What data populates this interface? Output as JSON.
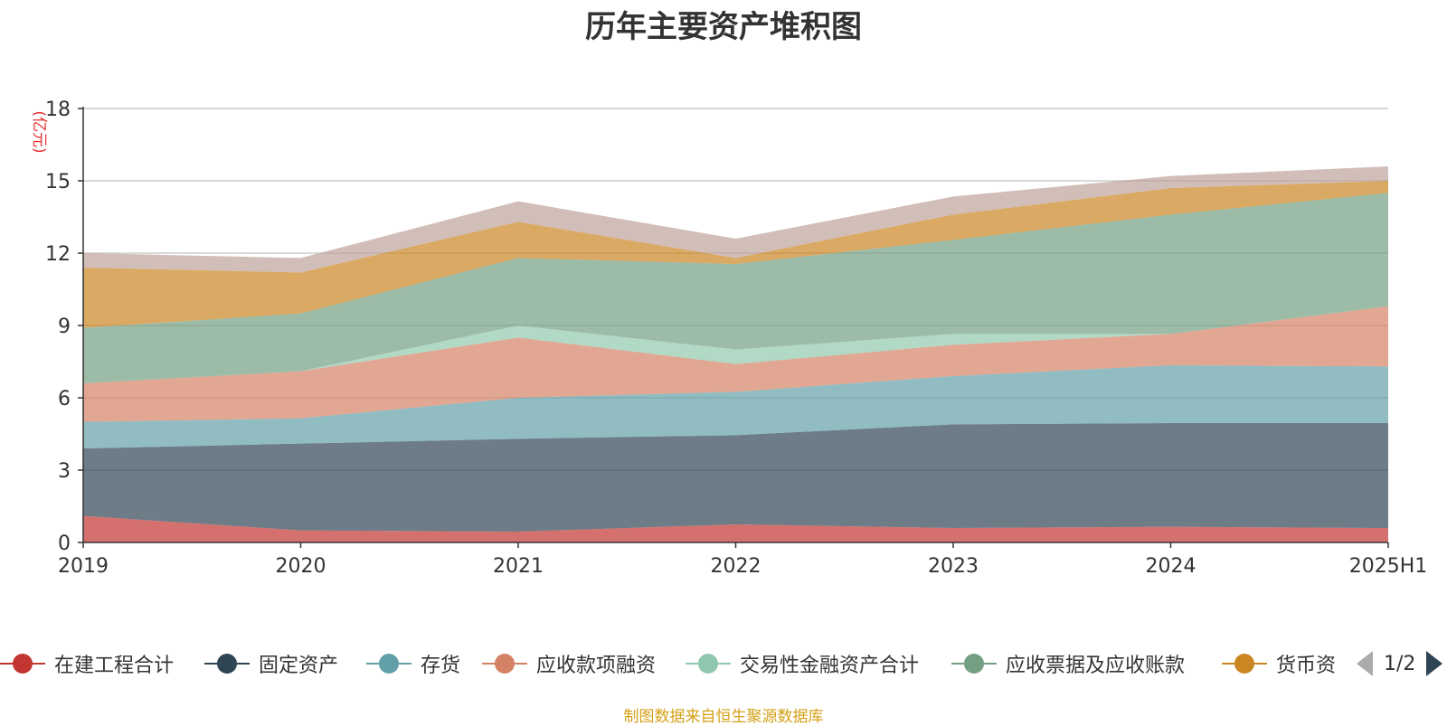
{
  "chart_data": {
    "type": "area",
    "stacked": true,
    "title": "历年主要资产堆积图",
    "ylabel": "(亿元)",
    "xlabel": "",
    "categories": [
      "2019",
      "2020",
      "2021",
      "2022",
      "2023",
      "2024",
      "2025H1"
    ],
    "ylim": [
      0,
      18
    ],
    "yticks": [
      0,
      3,
      6,
      9,
      12,
      15,
      18
    ],
    "grid": true,
    "legend_position": "bottom",
    "series": [
      {
        "name": "在建工程合计",
        "color": "#c23531",
        "values": [
          1.1,
          0.5,
          0.45,
          0.75,
          0.6,
          0.65,
          0.6
        ]
      },
      {
        "name": "固定资产",
        "color": "#2f4554",
        "values": [
          2.8,
          3.6,
          3.85,
          3.7,
          4.3,
          4.3,
          4.35
        ]
      },
      {
        "name": "存货",
        "color": "#61a0a8",
        "values": [
          1.1,
          1.05,
          1.7,
          1.8,
          2.0,
          2.4,
          2.35
        ]
      },
      {
        "name": "应收款项融资",
        "color": "#d48265",
        "values": [
          1.6,
          1.95,
          2.5,
          1.15,
          1.3,
          1.3,
          2.5
        ]
      },
      {
        "name": "交易性金融资产合计",
        "color": "#91c7ae",
        "values": [
          0.0,
          0.0,
          0.5,
          0.6,
          0.45,
          0.0,
          0.0
        ]
      },
      {
        "name": "应收票据及应收账款",
        "color": "#749f83",
        "values": [
          2.3,
          2.4,
          2.8,
          3.55,
          3.9,
          4.95,
          4.7
        ]
      },
      {
        "name": "货币资金",
        "color": "#ca8622",
        "values": [
          2.5,
          1.7,
          1.5,
          0.25,
          1.05,
          1.1,
          0.5
        ]
      },
      {
        "name": "",
        "color": "#bda29a",
        "values": [
          0.6,
          0.6,
          0.85,
          0.8,
          0.75,
          0.5,
          0.6
        ]
      }
    ]
  },
  "legend": {
    "items": [
      {
        "label": "在建工程合计",
        "color": "#c23531"
      },
      {
        "label": "固定资产",
        "color": "#2f4554"
      },
      {
        "label": "存货",
        "color": "#61a0a8"
      },
      {
        "label": "应收款项融资",
        "color": "#d48265"
      },
      {
        "label": "交易性金融资产合计",
        "color": "#91c7ae"
      },
      {
        "label": "应收票据及应收账款",
        "color": "#749f83"
      },
      {
        "label": "货币资",
        "color": "#ca8622"
      }
    ],
    "page": "1/2"
  },
  "footer": "制图数据来自恒生聚源数据库"
}
